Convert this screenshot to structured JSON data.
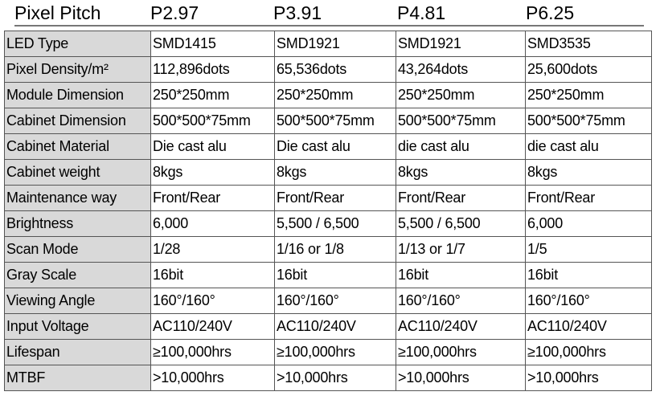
{
  "header": {
    "label": "Pixel Pitch",
    "pitches": [
      "P2.97",
      "P3.91",
      "P4.81",
      "P6.25"
    ]
  },
  "rows": [
    {
      "label": "LED Type",
      "values": [
        "SMD1415",
        "SMD1921",
        "SMD1921",
        "SMD3535"
      ]
    },
    {
      "label": "Pixel Density/m²",
      "values": [
        "112,896dots",
        "65,536dots",
        "43,264dots",
        "25,600dots"
      ]
    },
    {
      "label": "Module Dimension",
      "values": [
        "250*250mm",
        "250*250mm",
        "250*250mm",
        "250*250mm"
      ]
    },
    {
      "label": "Cabinet Dimension",
      "values": [
        "500*500*75mm",
        "500*500*75mm",
        "500*500*75mm",
        "500*500*75mm"
      ]
    },
    {
      "label": "Cabinet Material",
      "values": [
        "Die cast alu",
        "Die cast alu",
        "die cast alu",
        "die cast alu"
      ]
    },
    {
      "label": "Cabinet weight",
      "values": [
        "8kgs",
        "8kgs",
        "8kgs",
        "8kgs"
      ]
    },
    {
      "label": "Maintenance way",
      "values": [
        "Front/Rear",
        "Front/Rear",
        "Front/Rear",
        "Front/Rear"
      ]
    },
    {
      "label": "Brightness",
      "values": [
        "6,000",
        "5,500 / 6,500",
        "5,500 / 6,500",
        "6,000"
      ]
    },
    {
      "label": "Scan Mode",
      "values": [
        "1/28",
        "1/16 or 1/8",
        "1/13 or 1/7",
        "1/5"
      ]
    },
    {
      "label": "Gray Scale",
      "values": [
        "16bit",
        "16bit",
        "16bit",
        "16bit"
      ]
    },
    {
      "label": "Viewing Angle",
      "values": [
        "160°/160°",
        "160°/160°",
        "160°/160°",
        "160°/160°"
      ]
    },
    {
      "label": "Input Voltage",
      "values": [
        "AC110/240V",
        "AC110/240V",
        "AC110/240V",
        "AC110/240V"
      ]
    },
    {
      "label": "Lifespan",
      "values": [
        "≥100,000hrs",
        "≥100,000hrs",
        "≥100,000hrs",
        "≥100,000hrs"
      ]
    },
    {
      "label": "MTBF",
      "values": [
        ">10,000hrs",
        ">10,000hrs",
        ">10,000hrs",
        ">10,000hrs"
      ]
    }
  ],
  "colors": {
    "label_bg": "#d9d9d9",
    "border": "#555555"
  }
}
